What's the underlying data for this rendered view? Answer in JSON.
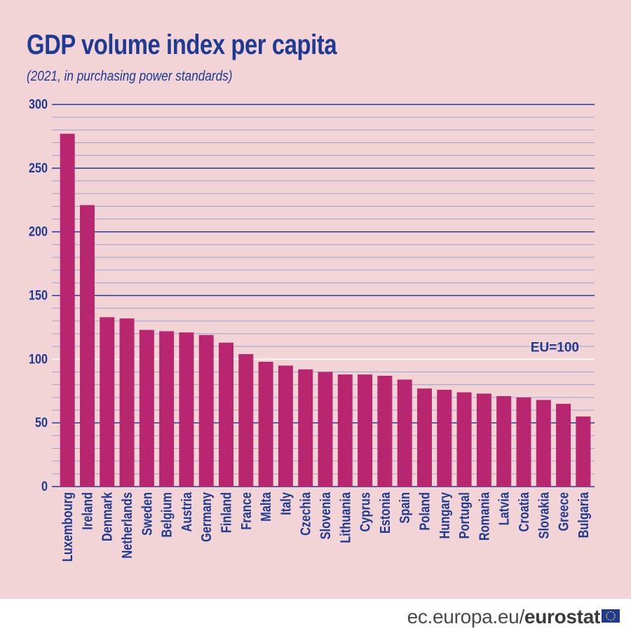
{
  "header": {
    "title": "GDP volume index per capita",
    "subtitle": "(2021, in purchasing power standards)"
  },
  "chart_data": {
    "type": "bar",
    "title": "GDP volume index per capita",
    "subtitle": "(2021, in purchasing power standards)",
    "xlabel": "",
    "ylabel": "",
    "ylim": [
      0,
      300
    ],
    "yticks": [
      0,
      50,
      100,
      150,
      200,
      250,
      300
    ],
    "grid": true,
    "reference_line": {
      "value": 100,
      "label": "EU=100"
    },
    "categories": [
      "Luxembourg",
      "Ireland",
      "Denmark",
      "Netherlands",
      "Sweden",
      "Belgium",
      "Austria",
      "Germany",
      "Finland",
      "France",
      "Malta",
      "Italy",
      "Czechia",
      "Slovenia",
      "Lithuania",
      "Cyprus",
      "Estonia",
      "Spain",
      "Poland",
      "Hungary",
      "Portugal",
      "Romania",
      "Latvia",
      "Croatia",
      "Slovakia",
      "Greece",
      "Bulgaria"
    ],
    "values": [
      277,
      221,
      133,
      132,
      123,
      122,
      121,
      119,
      113,
      104,
      98,
      95,
      92,
      90,
      88,
      88,
      87,
      84,
      77,
      76,
      74,
      73,
      71,
      70,
      68,
      65,
      55
    ],
    "colors": {
      "bar": "#b8266f",
      "axis": "#1f3a93",
      "minor_grid": "#9aa3cf",
      "background": "#f2d4d6"
    }
  },
  "footer": {
    "site": "ec.europa.eu/",
    "brand": "eurostat"
  }
}
